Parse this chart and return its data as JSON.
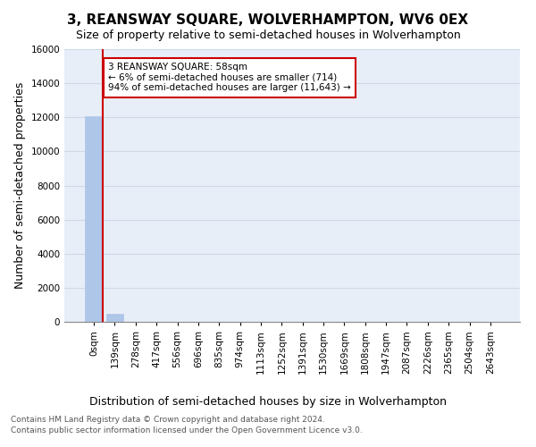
{
  "title": "3, REANSWAY SQUARE, WOLVERHAMPTON, WV6 0EX",
  "subtitle": "Size of property relative to semi-detached houses in Wolverhampton",
  "xlabel_dist": "Distribution of semi-detached houses by size in Wolverhampton",
  "ylabel": "Number of semi-detached properties",
  "footnote1": "Contains HM Land Registry data © Crown copyright and database right 2024.",
  "footnote2": "Contains public sector information licensed under the Open Government Licence v3.0.",
  "bin_labels": [
    "0sqm",
    "139sqm",
    "278sqm",
    "417sqm",
    "556sqm",
    "696sqm",
    "835sqm",
    "974sqm",
    "1113sqm",
    "1252sqm",
    "1391sqm",
    "1530sqm",
    "1669sqm",
    "1808sqm",
    "1947sqm",
    "2087sqm",
    "2226sqm",
    "2365sqm",
    "2504sqm",
    "2643sqm"
  ],
  "bar_values": [
    12050,
    450,
    10,
    5,
    3,
    2,
    2,
    1,
    1,
    1,
    1,
    1,
    1,
    1,
    0,
    0,
    0,
    0,
    0,
    0
  ],
  "bar_color": "#aec6e8",
  "bar_edge_color": "#aec6e8",
  "ylim": [
    0,
    16000
  ],
  "yticks": [
    0,
    2000,
    4000,
    6000,
    8000,
    10000,
    12000,
    14000,
    16000
  ],
  "property_bin_index": 0,
  "property_size": "58sqm",
  "property_name": "3 REANSWAY SQUARE",
  "pct_smaller": 6,
  "count_smaller": 714,
  "pct_larger": 94,
  "count_larger": 11643,
  "annotation_box_color": "#cc0000",
  "grid_color": "#d0d8e8",
  "bg_color": "#e8eef8",
  "title_fontsize": 11,
  "subtitle_fontsize": 9,
  "tick_fontsize": 7.5,
  "ylabel_fontsize": 9,
  "footnote_fontsize": 6.5,
  "footnote_color": "#555555"
}
